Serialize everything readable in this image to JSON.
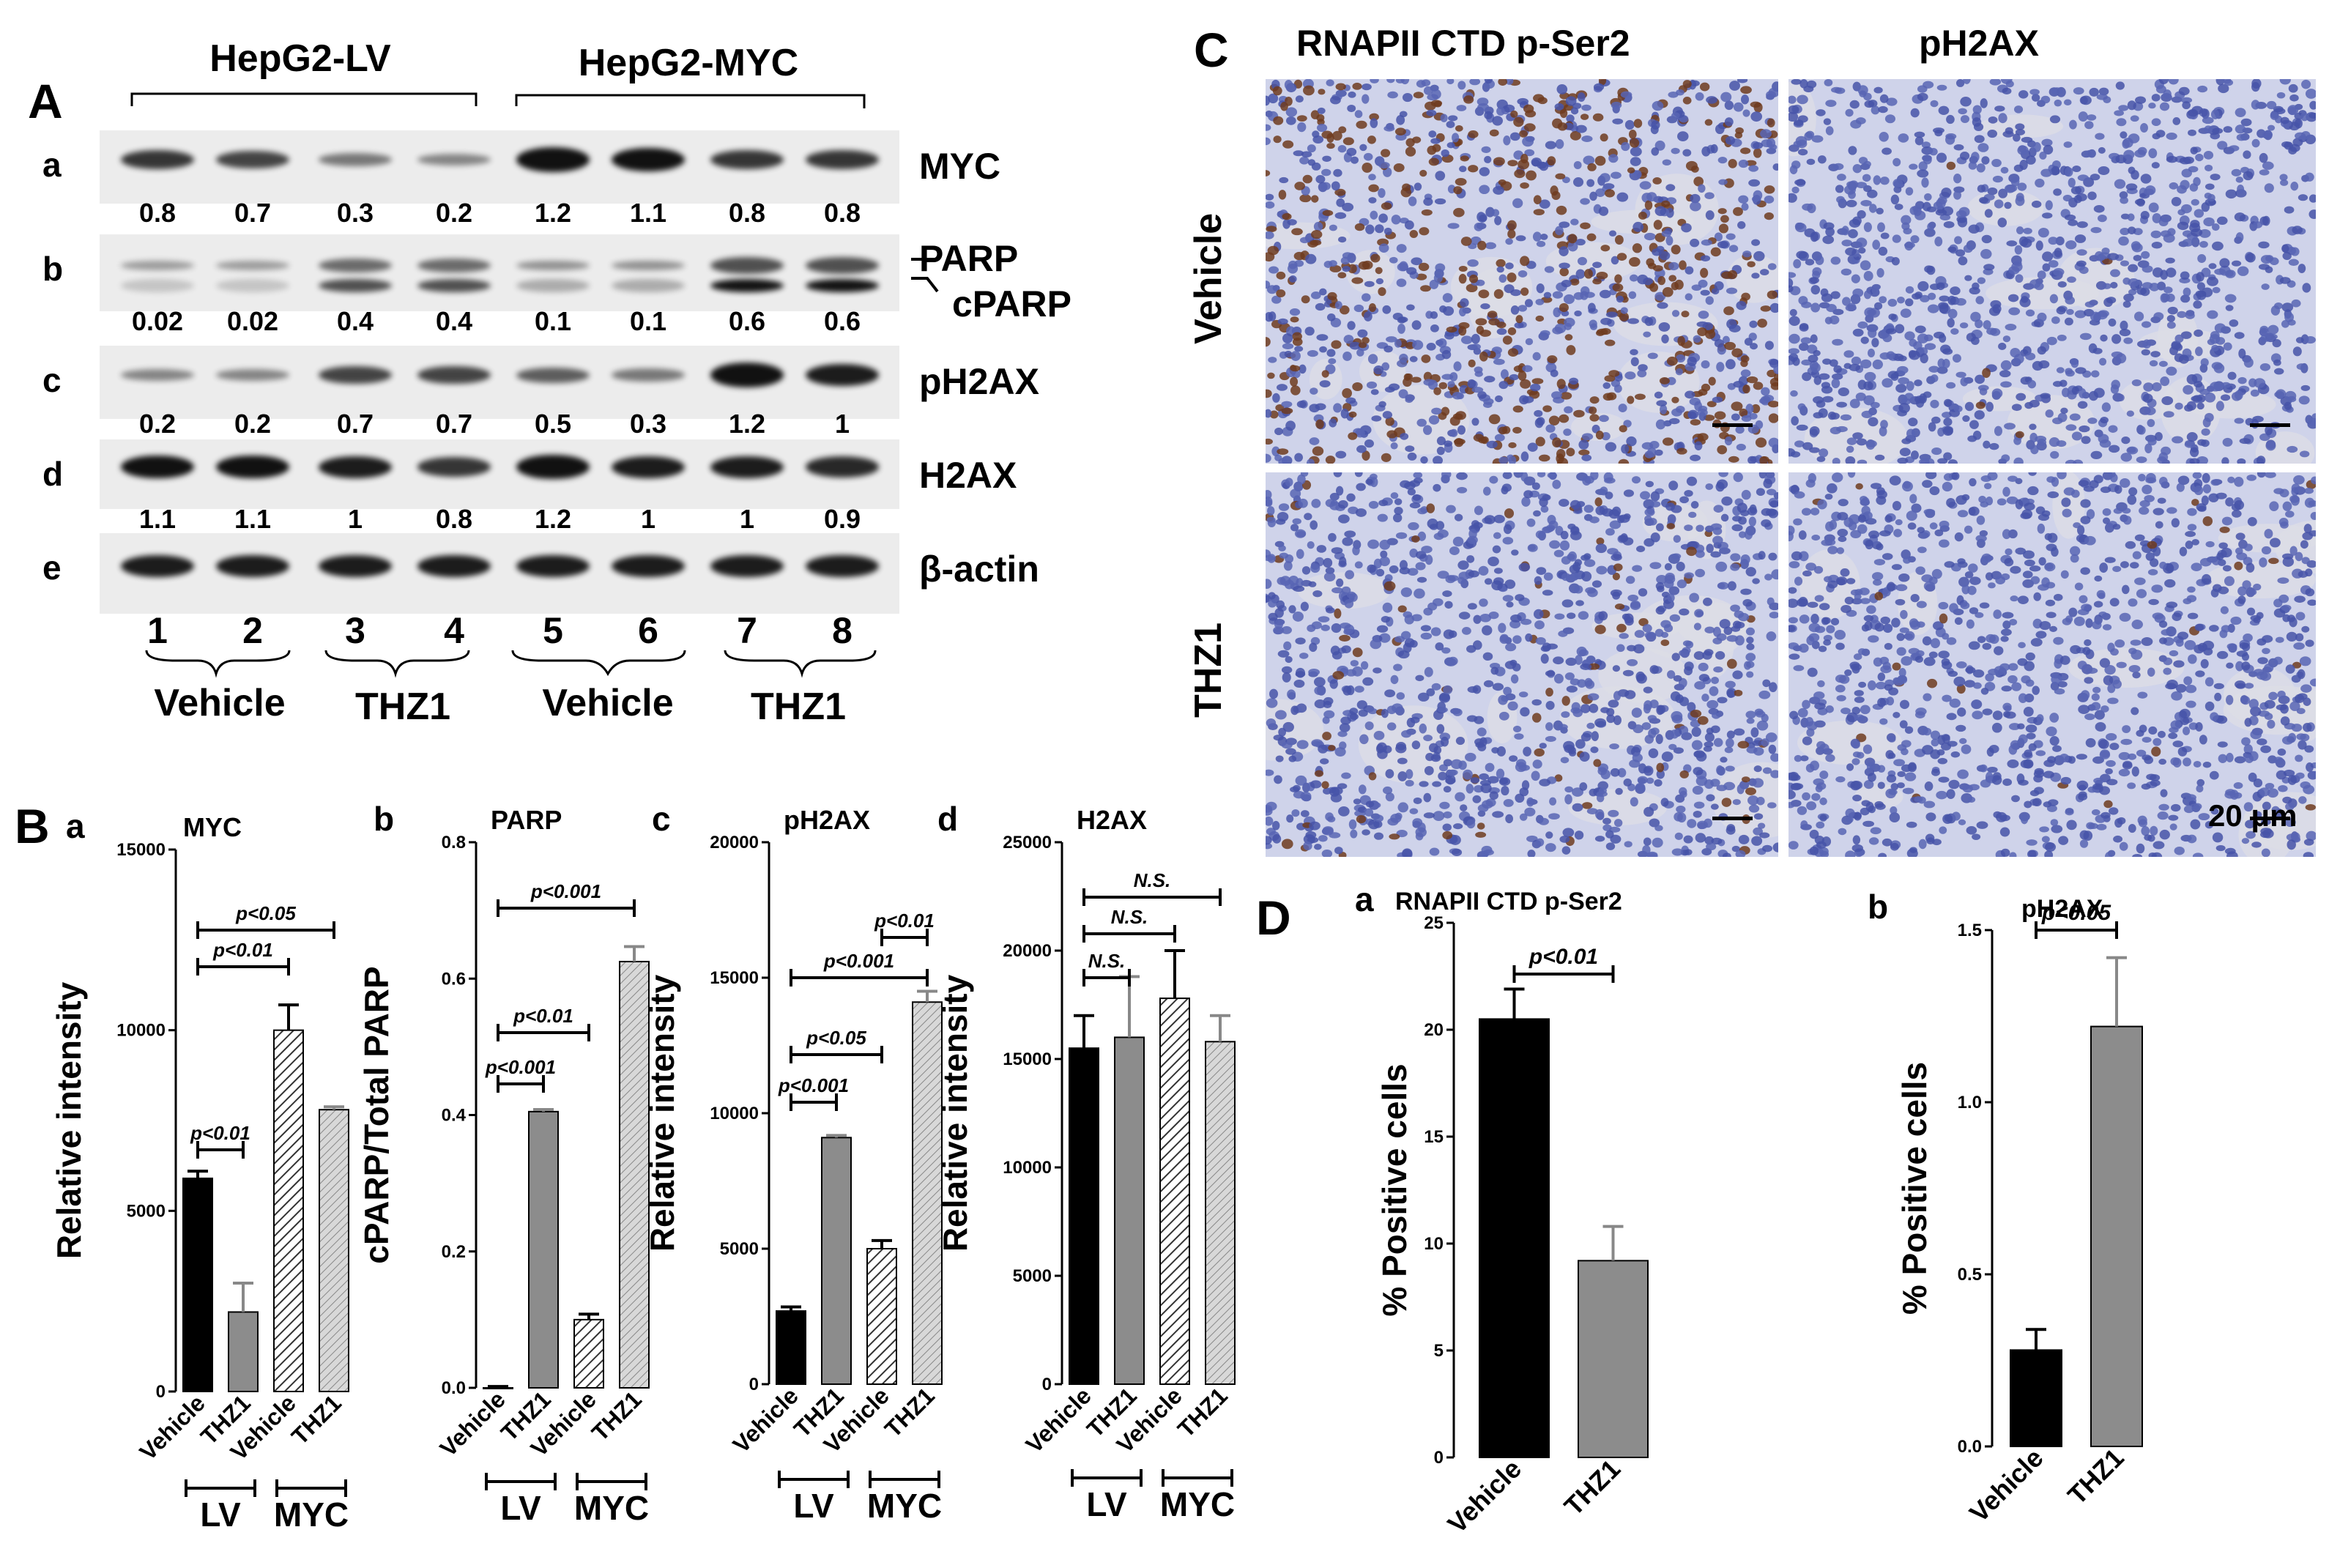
{
  "panelA": {
    "letter": "A",
    "groups": [
      "HepG2-LV",
      "HepG2-MYC"
    ],
    "rows": [
      {
        "row": "a",
        "protein": "MYC",
        "values": [
          "0.8",
          "0.7",
          "0.3",
          "0.2",
          "1.2",
          "1.1",
          "0.8",
          "0.8"
        ],
        "intensity": [
          0.8,
          0.7,
          0.3,
          0.2,
          1.2,
          1.1,
          0.8,
          0.8
        ]
      },
      {
        "row": "b",
        "protein": "PARP",
        "protein2": "cPARP",
        "values": [
          "0.02",
          "0.02",
          "0.4",
          "0.4",
          "0.1",
          "0.1",
          "0.6",
          "0.6"
        ],
        "intensity": [
          0.02,
          0.02,
          0.4,
          0.4,
          0.1,
          0.1,
          0.6,
          0.6
        ]
      },
      {
        "row": "c",
        "protein": "pH2AX",
        "values": [
          "0.2",
          "0.2",
          "0.7",
          "0.7",
          "0.5",
          "0.3",
          "1.2",
          "1"
        ],
        "intensity": [
          0.2,
          0.2,
          0.7,
          0.7,
          0.5,
          0.3,
          1.2,
          1
        ]
      },
      {
        "row": "d",
        "protein": "H2AX",
        "values": [
          "1.1",
          "1.1",
          "1",
          "0.8",
          "1.2",
          "1",
          "1",
          "0.9"
        ],
        "intensity": [
          1.1,
          1.1,
          1,
          0.8,
          1.2,
          1,
          1,
          0.9
        ]
      },
      {
        "row": "e",
        "protein": "β-actin",
        "values": [],
        "intensity": [
          1,
          1,
          1,
          1,
          1,
          1,
          1,
          1
        ]
      }
    ],
    "lanes": [
      "1",
      "2",
      "3",
      "4",
      "5",
      "6",
      "7",
      "8"
    ],
    "treatments": [
      "Vehicle",
      "THZ1",
      "Vehicle",
      "THZ1"
    ]
  },
  "panelB": {
    "letter": "B",
    "bottom_groups": [
      "LV",
      "MYC"
    ],
    "charts": [
      {
        "sub": "a",
        "title": "MYC",
        "ylabel": "Relative intensity",
        "ylim": [
          0,
          15000
        ],
        "ticks": [
          "0",
          "5000",
          "10000",
          "15000"
        ],
        "categories": [
          "Vehicle",
          "THZ1",
          "Vehicle",
          "THZ1"
        ],
        "values": [
          5900,
          2200,
          10000,
          7800
        ],
        "errors": [
          200,
          800,
          700,
          80
        ],
        "comparisons": [
          {
            "label": "p<0.01",
            "from": 0,
            "to": 1
          },
          {
            "label": "p<0.01",
            "from": 0,
            "to": 2
          },
          {
            "label": "p<0.05",
            "from": 0,
            "to": 3
          }
        ]
      },
      {
        "sub": "b",
        "title": "PARP",
        "ylabel": "cPARP/Total PARP",
        "ylim": [
          0,
          0.8
        ],
        "ticks": [
          "0.0",
          "0.2",
          "0.4",
          "0.6",
          "0.8"
        ],
        "categories": [
          "Vehicle",
          "THZ1",
          "Vehicle",
          "THZ1"
        ],
        "values": [
          0.0,
          0.405,
          0.1,
          0.625
        ],
        "errors": [
          0.002,
          0.003,
          0.008,
          0.022
        ],
        "comparisons": [
          {
            "label": "p<0.001",
            "from": 0,
            "to": 1
          },
          {
            "label": "p<0.01",
            "from": 0,
            "to": 2
          },
          {
            "label": "p<0.001",
            "from": 0,
            "to": 3
          }
        ]
      },
      {
        "sub": "c",
        "title": "pH2AX",
        "ylabel": "Relative intensity",
        "ylim": [
          0,
          20000
        ],
        "ticks": [
          "0",
          "5000",
          "10000",
          "15000",
          "20000"
        ],
        "categories": [
          "Vehicle",
          "THZ1",
          "Vehicle",
          "THZ1"
        ],
        "values": [
          2700,
          9100,
          5000,
          14100
        ],
        "errors": [
          150,
          80,
          300,
          400
        ],
        "comparisons": [
          {
            "label": "p<0.001",
            "from": 0,
            "to": 1
          },
          {
            "label": "p<0.05",
            "from": 0,
            "to": 2
          },
          {
            "label": "p<0.001",
            "from": 0,
            "to": 3
          },
          {
            "label": "p<0.01",
            "from": 2,
            "to": 3
          }
        ]
      },
      {
        "sub": "d",
        "title": "H2AX",
        "ylabel": "Relative intensity",
        "ylim": [
          0,
          25000
        ],
        "ticks": [
          "0",
          "5000",
          "10000",
          "15000",
          "20000",
          "25000"
        ],
        "categories": [
          "Vehicle",
          "THZ1",
          "Vehicle",
          "THZ1"
        ],
        "values": [
          15500,
          16000,
          17800,
          15800
        ],
        "errors": [
          1500,
          2800,
          2200,
          1200
        ],
        "comparisons": [
          {
            "label": "N.S.",
            "from": 0,
            "to": 1
          },
          {
            "label": "N.S.",
            "from": 0,
            "to": 2
          },
          {
            "label": "N.S.",
            "from": 0,
            "to": 3
          }
        ]
      }
    ]
  },
  "panelC": {
    "letter": "C",
    "columns": [
      "RNAPII  CTD p-Ser2",
      "pH2AX"
    ],
    "rows": [
      "Vehicle",
      "THZ1"
    ],
    "scalebar": "20 μm"
  },
  "panelD": {
    "letter": "D",
    "charts": [
      {
        "sub": "a",
        "title": "RNAPII CTD p-Ser2",
        "ylabel": "% Positive cells",
        "ylim": [
          0,
          25
        ],
        "ticks": [
          "0",
          "5",
          "10",
          "15",
          "20",
          "25"
        ],
        "categories": [
          "Vehicle",
          "THZ1"
        ],
        "values": [
          20.5,
          9.2
        ],
        "errors": [
          1.4,
          1.6
        ],
        "comparisons": [
          {
            "label": "p<0.01",
            "from": 0,
            "to": 1
          }
        ]
      },
      {
        "sub": "b",
        "title": "pH2AX",
        "ylabel": "% Positive cells",
        "ylim": [
          0,
          1.5
        ],
        "ticks": [
          "0.0",
          "0.5",
          "1.0",
          "1.5"
        ],
        "categories": [
          "Vehicle",
          "THZ1"
        ],
        "values": [
          0.28,
          1.22
        ],
        "errors": [
          0.06,
          0.2
        ],
        "comparisons": [
          {
            "label": "p<0.05",
            "from": 0,
            "to": 1
          }
        ]
      }
    ]
  },
  "colors": {
    "vehicle": "#000000",
    "thz1": "#8c8c8c",
    "hatch": "#555555"
  }
}
